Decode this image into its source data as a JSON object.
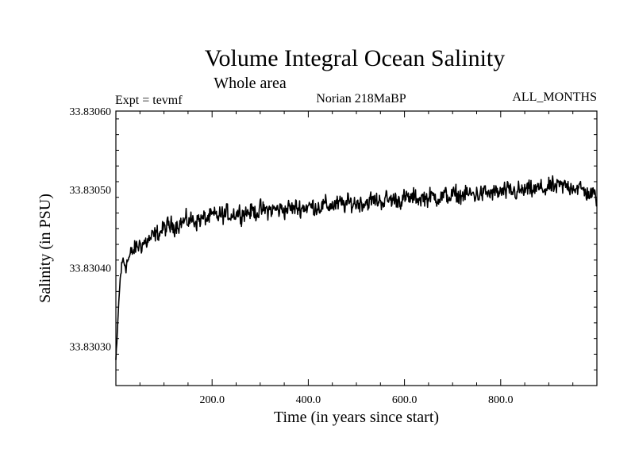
{
  "chart_data": {
    "type": "line",
    "title": "Volume Integral Ocean Salinity",
    "subtitle": "Whole area",
    "left_label": "Expt = tevmf",
    "center_label": "Norian 218MaBP",
    "right_label": "ALL_MONTHS",
    "xlabel": "Time (in years since start)",
    "ylabel": "Salinity (in PSU)",
    "xlim": [
      0,
      1000
    ],
    "ylim": [
      33.83025,
      33.8306
    ],
    "x_ticks": [
      200,
      400,
      600,
      800
    ],
    "x_tick_labels": [
      "200.0",
      "400.0",
      "600.0",
      "800.0"
    ],
    "y_ticks": [
      33.8303,
      33.8304,
      33.8305,
      33.8306
    ],
    "y_tick_labels": [
      "33.83030",
      "33.83040",
      "33.83050",
      "33.83060"
    ],
    "series": [
      {
        "name": "salinity",
        "x": [
          0,
          2,
          5,
          10,
          15,
          20,
          30,
          40,
          50,
          60,
          80,
          100,
          120,
          150,
          180,
          200,
          250,
          300,
          350,
          400,
          450,
          500,
          550,
          600,
          650,
          700,
          750,
          800,
          850,
          900,
          950,
          1000
        ],
        "values": [
          33.830282,
          33.8303,
          33.830345,
          33.830395,
          33.83041,
          33.830405,
          33.830415,
          33.830425,
          33.83043,
          33.830432,
          33.83044,
          33.83045,
          33.830455,
          33.83046,
          33.830462,
          33.830465,
          33.83047,
          33.830473,
          33.830475,
          33.830478,
          33.83048,
          33.830483,
          33.830486,
          33.830488,
          33.83049,
          33.830492,
          33.830494,
          33.830496,
          33.830498,
          33.830502,
          33.830505,
          33.83049
        ]
      }
    ]
  }
}
